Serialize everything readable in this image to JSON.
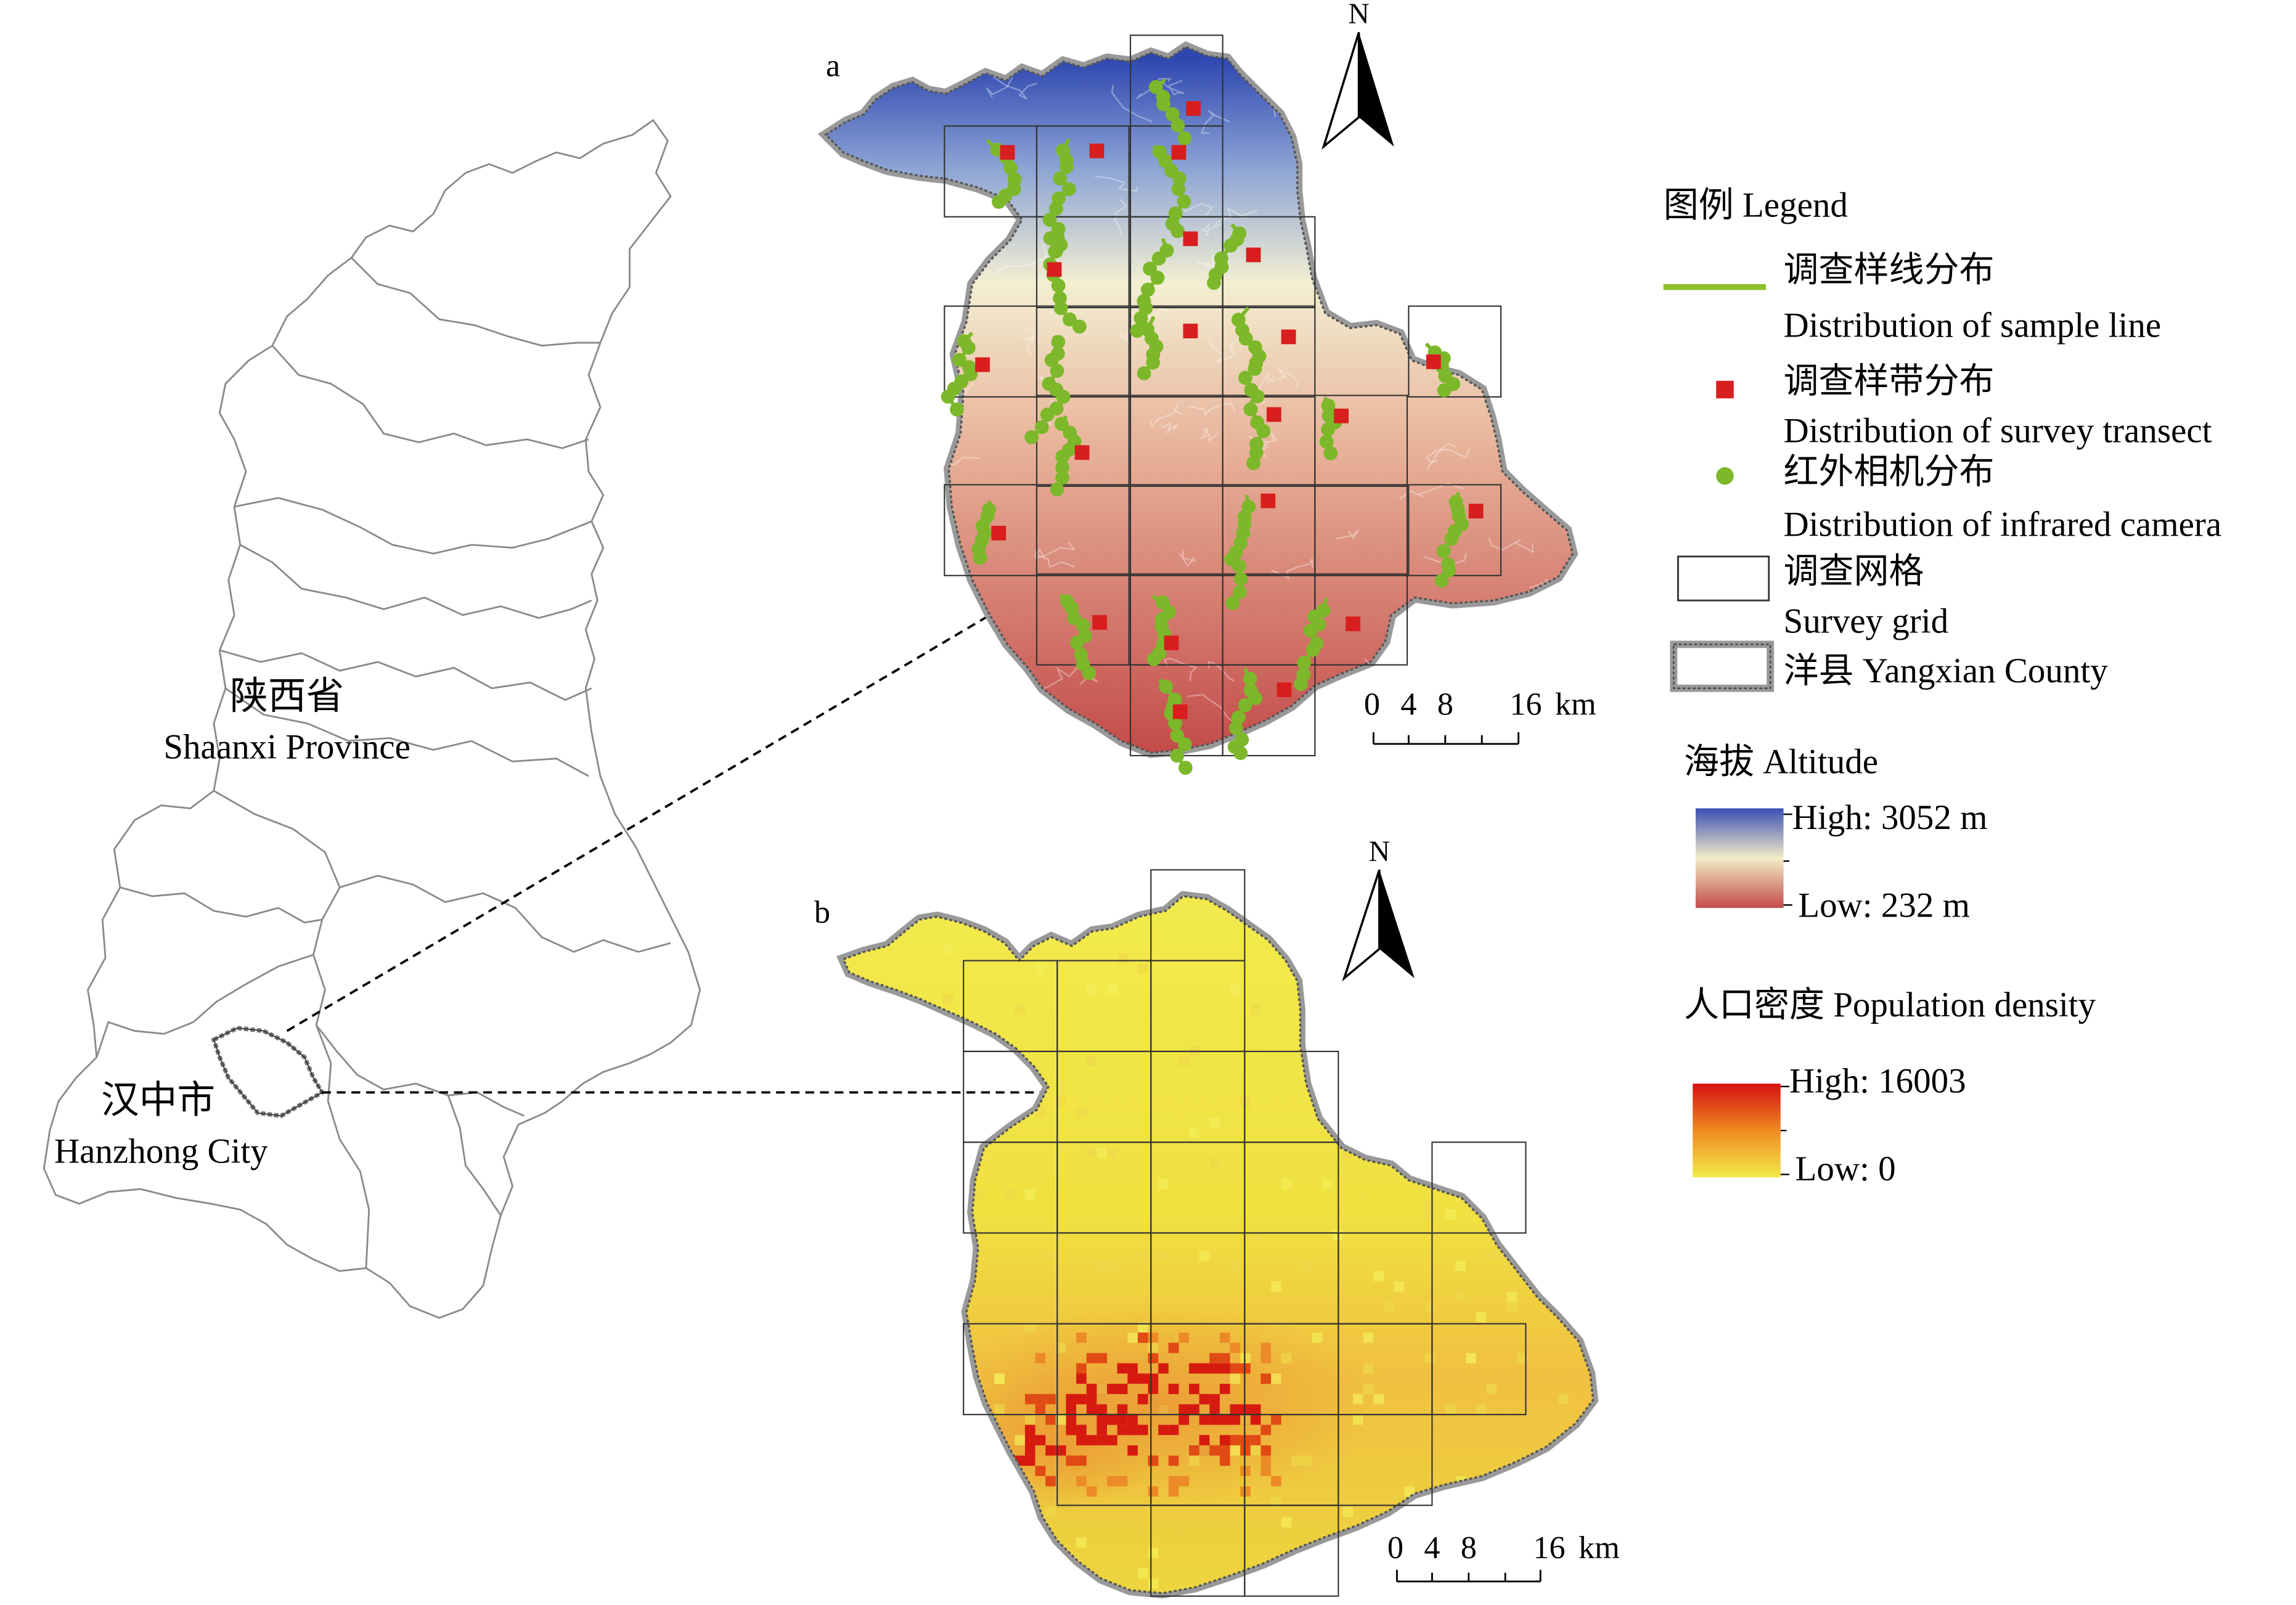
{
  "province": {
    "name_cn": "陕西省",
    "name_en": "Shaanxi Province"
  },
  "city": {
    "name_cn": "汉中市",
    "name_en": "Hanzhong City"
  },
  "panel_a": {
    "label": "a",
    "north": "N",
    "scale": {
      "ticks": [
        "0",
        "4",
        "8",
        "16"
      ],
      "unit": "km"
    }
  },
  "panel_b": {
    "label": "b",
    "north": "N",
    "scale": {
      "ticks": [
        "0",
        "4",
        "8",
        "16"
      ],
      "unit": "km"
    }
  },
  "legend": {
    "title": "图例 Legend",
    "items": [
      {
        "cn": "调查样线分布",
        "en": "Distribution of sample line",
        "symbol": "green-line",
        "color": "#8cbf2a"
      },
      {
        "cn": "调查样带分布",
        "en": "Distribution of survey transect",
        "symbol": "red-square",
        "color": "#d81e1e"
      },
      {
        "cn": "红外相机分布",
        "en": "Distribution of infrared camera",
        "symbol": "green-dot",
        "color": "#7cb829"
      },
      {
        "cn": "调查网格",
        "en": "Survey grid",
        "symbol": "grid-box"
      },
      {
        "cn": "洋县 Yangxian County",
        "en": "",
        "symbol": "county-outline"
      }
    ],
    "altitude": {
      "title": "海拔 Altitude",
      "high": "High: 3052 m",
      "low": "Low: 232 m"
    },
    "population": {
      "title": "人口密度 Population density",
      "high": "High: 16003",
      "low": "Low: 0"
    }
  },
  "colors": {
    "elev_high": "#3a4fb5",
    "elev_mid": "#f3ecc8",
    "elev_low": "#c44b4b",
    "pop_high": "#d41010",
    "pop_low": "#f2ea48",
    "marker_green": "#7cb829",
    "marker_red": "#d81e1e"
  }
}
